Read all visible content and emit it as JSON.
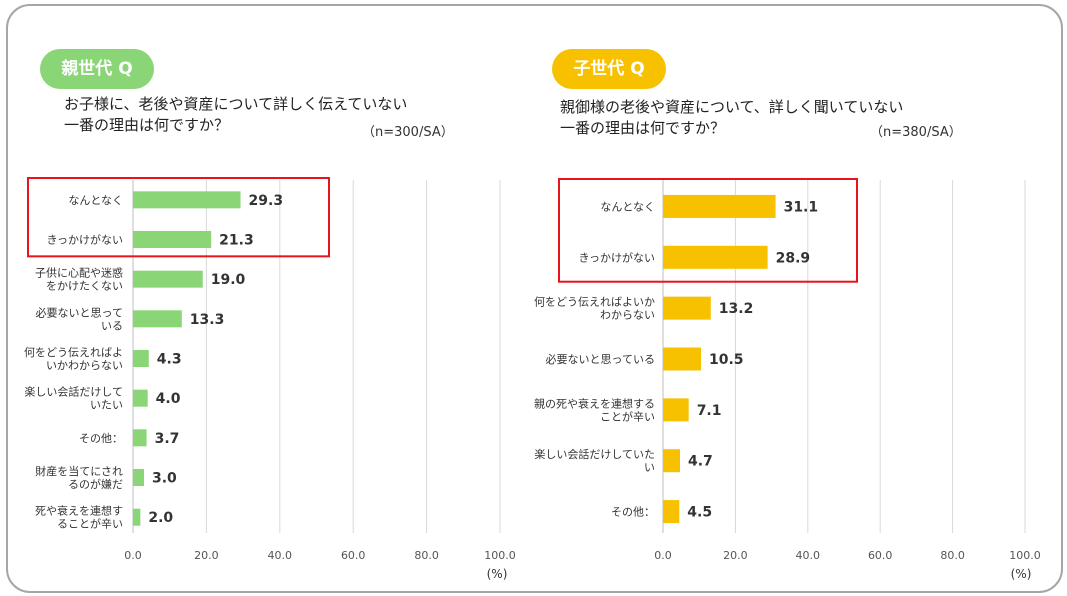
{
  "colors": {
    "parent_accent": "#8ad576",
    "child_accent": "#f8c100",
    "highlight": "#e8141c"
  },
  "left": {
    "badge": "親世代 Q",
    "question_line1": "お子様に、老後や資産について詳しく伝えていない",
    "question_line2": "一番の理由は何ですか？",
    "sample": "（n=300/SA）"
  },
  "right": {
    "badge": "子世代 Q",
    "question_line1": "親御様の老後や資産について、詳しく聞いていない",
    "question_line2": "一番の理由は何ですか？",
    "sample": "（n=380/SA）"
  },
  "chart_data": [
    {
      "type": "bar",
      "orientation": "horizontal",
      "categories": [
        [
          "なんとなく"
        ],
        [
          "きっかけがない"
        ],
        [
          "子供に心配や迷惑",
          "をかけたくない"
        ],
        [
          "必要ないと思って",
          "いる"
        ],
        [
          "何をどう伝えればよ",
          "いかわからない"
        ],
        [
          "楽しい会話だけして",
          "いたい"
        ],
        [
          "その他："
        ],
        [
          "財産を当てにされ",
          "るのが嫌だ"
        ],
        [
          "死や衰えを連想す",
          "ることが辛い"
        ]
      ],
      "values": [
        29.3,
        21.3,
        19.0,
        13.3,
        4.3,
        4.0,
        3.7,
        3.0,
        2.0
      ],
      "value_labels": [
        "29.3",
        "21.3",
        "19.0",
        "13.3",
        "4.3",
        "4.0",
        "3.7",
        "3.0",
        "2.0"
      ],
      "xlim": [
        0,
        100
      ],
      "ticks": [
        "0.0",
        "20.0",
        "40.0",
        "60.0",
        "80.0",
        "100.0"
      ],
      "tick_values": [
        0,
        20,
        40,
        60,
        80,
        100
      ],
      "unit": "(%)",
      "highlighted_count": 2,
      "color": "#8ad576",
      "grid": true
    },
    {
      "type": "bar",
      "orientation": "horizontal",
      "categories": [
        [
          "なんとなく"
        ],
        [
          "きっかけがない"
        ],
        [
          "何をどう伝えればよいか",
          "わからない"
        ],
        [
          "必要ないと思っている"
        ],
        [
          "親の死や衰えを連想する",
          "ことが辛い"
        ],
        [
          "楽しい会話だけしていた",
          "い"
        ],
        [
          "その他："
        ]
      ],
      "values": [
        31.1,
        28.9,
        13.2,
        10.5,
        7.1,
        4.7,
        4.5
      ],
      "value_labels": [
        "31.1",
        "28.9",
        "13.2",
        "10.5",
        "7.1",
        "4.7",
        "4.5"
      ],
      "xlim": [
        0,
        100
      ],
      "ticks": [
        "0.0",
        "20.0",
        "40.0",
        "60.0",
        "80.0",
        "100.0"
      ],
      "tick_values": [
        0,
        20,
        40,
        60,
        80,
        100
      ],
      "unit": "(%)",
      "highlighted_count": 2,
      "color": "#f8c100",
      "grid": true
    }
  ]
}
